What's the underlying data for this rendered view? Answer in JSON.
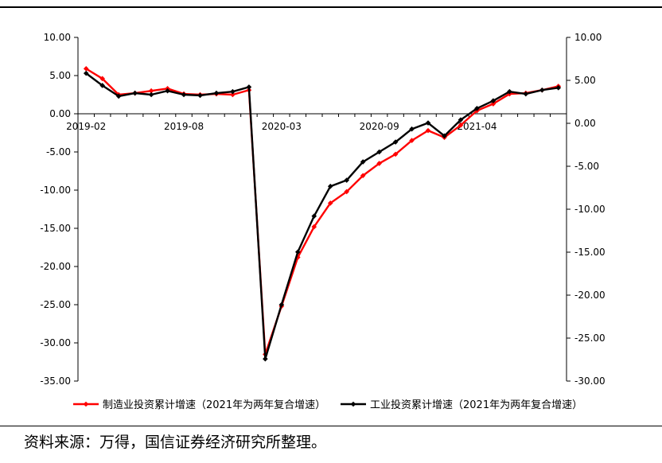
{
  "source_note": "资料来源：万得，国信证券经济研究所整理。",
  "chart_data": {
    "type": "line",
    "x": [
      "2019-02",
      "2019-03",
      "2019-04",
      "2019-05",
      "2019-06",
      "2019-07",
      "2019-08",
      "2019-09",
      "2019-10",
      "2019-11",
      "2019-12",
      "2020-02",
      "2020-03",
      "2020-04",
      "2020-05",
      "2020-06",
      "2020-07",
      "2020-08",
      "2020-09",
      "2020-10",
      "2020-11",
      "2020-12",
      "2021-02",
      "2021-03",
      "2021-04",
      "2021-05",
      "2021-06",
      "2021-07",
      "2021-08",
      "2021-09"
    ],
    "x_tick_labels": [
      "2019-02",
      "2019-08",
      "2020-03",
      "2020-09",
      "2021-04"
    ],
    "x_tick_indices": [
      0,
      6,
      12,
      18,
      24
    ],
    "y_left_ticks": [
      "10.00",
      "5.00",
      "0.00",
      "-5.00",
      "-10.00",
      "-15.00",
      "-20.00",
      "-25.00",
      "-30.00",
      "-35.00"
    ],
    "y_right_ticks": [
      "10.00",
      "5.00",
      "0.00",
      "-5.00",
      "-10.00",
      "-15.00",
      "-20.00",
      "-25.00",
      "-30.00"
    ],
    "ylim_left": [
      -35,
      10
    ],
    "ylim_right": [
      -30,
      10
    ],
    "grid": false,
    "legend_position": "bottom",
    "series": [
      {
        "name": "制造业投资累计增速（2021年为两年复合增速）",
        "axis": "left",
        "color": "#ff0000",
        "values": [
          5.9,
          4.6,
          2.5,
          2.7,
          3.0,
          3.3,
          2.6,
          2.5,
          2.6,
          2.5,
          3.1,
          -31.5,
          -25.2,
          -18.8,
          -14.8,
          -11.7,
          -10.2,
          -8.1,
          -6.5,
          -5.3,
          -3.5,
          -2.2,
          -3.1,
          -1.5,
          0.4,
          1.3,
          2.6,
          2.7,
          3.1,
          3.6
        ]
      },
      {
        "name": "工业投资累计增速（2021年为两年复合增速）",
        "axis": "left",
        "color": "#000000",
        "values": [
          5.3,
          3.7,
          2.3,
          2.7,
          2.5,
          3.0,
          2.5,
          2.4,
          2.7,
          2.9,
          3.5,
          -32.1,
          -25.0,
          -18.1,
          -13.4,
          -9.5,
          -8.7,
          -6.3,
          -5.0,
          -3.7,
          -2.0,
          -1.2,
          -2.9,
          -0.8,
          0.7,
          1.7,
          2.9,
          2.6,
          3.1,
          3.4
        ]
      }
    ]
  }
}
